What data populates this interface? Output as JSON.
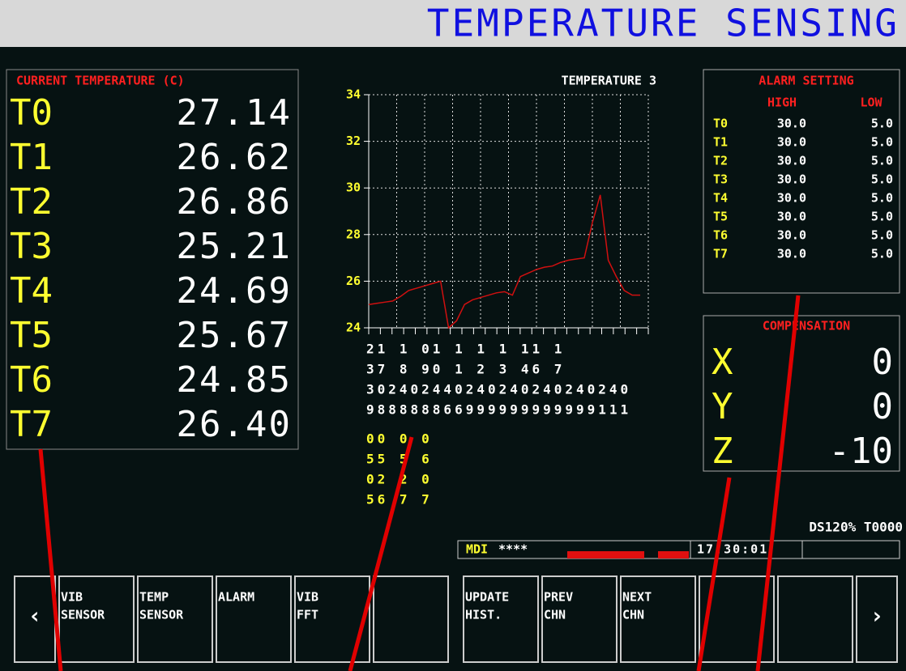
{
  "header": {
    "title": "TEMPERATURE SENSING"
  },
  "current": {
    "title": "CURRENT TEMPERATURE (C)",
    "rows": [
      [
        "T0",
        "27.14"
      ],
      [
        "T1",
        "26.62"
      ],
      [
        "T2",
        "26.86"
      ],
      [
        "T3",
        "25.21"
      ],
      [
        "T4",
        "24.69"
      ],
      [
        "T5",
        "25.67"
      ],
      [
        "T6",
        "24.85"
      ],
      [
        "T7",
        "26.40"
      ]
    ]
  },
  "chart_data": {
    "type": "line",
    "title": "TEMPERATURE 3",
    "color": "#d01010",
    "ylim": [
      24,
      34
    ],
    "yticks": [
      24,
      26,
      28,
      30,
      32,
      34
    ],
    "grid": true,
    "values": [
      25.0,
      25.05,
      25.1,
      25.15,
      25.35,
      25.6,
      25.7,
      25.8,
      25.9,
      26.0,
      24.0,
      24.3,
      25.0,
      25.2,
      25.3,
      25.4,
      25.5,
      25.55,
      25.4,
      26.2,
      26.35,
      26.5,
      26.6,
      26.65,
      26.8,
      26.9,
      26.95,
      27.0,
      28.5,
      29.7,
      26.9,
      26.2,
      25.6,
      25.4,
      25.4
    ],
    "x_label_rows": [
      "21 1 01 1 1 1 11 1",
      "37 8 90 1 2 3 46 7",
      "302402440240240240240240",
      "988888866999999999999111"
    ],
    "x_label_rows_yellow": [
      "00 0 0",
      "55 5 6",
      "02 2 0",
      "56 7 7"
    ]
  },
  "alarm": {
    "title": "ALARM SETTING",
    "headers": [
      "HIGH",
      "LOW"
    ],
    "rows": [
      [
        "T0",
        "30.0",
        "5.0"
      ],
      [
        "T1",
        "30.0",
        "5.0"
      ],
      [
        "T2",
        "30.0",
        "5.0"
      ],
      [
        "T3",
        "30.0",
        "5.0"
      ],
      [
        "T4",
        "30.0",
        "5.0"
      ],
      [
        "T5",
        "30.0",
        "5.0"
      ],
      [
        "T6",
        "30.0",
        "5.0"
      ],
      [
        "T7",
        "30.0",
        "5.0"
      ]
    ]
  },
  "compensation": {
    "title": "COMPENSATION",
    "rows": [
      [
        "X",
        "0"
      ],
      [
        "Y",
        "0"
      ],
      [
        "Z",
        "-10"
      ]
    ]
  },
  "status": {
    "info": "DS120% T0000",
    "mode": "MDI",
    "stars": "****",
    "time": "17:30:01"
  },
  "softkeys": {
    "prev": "‹",
    "next": "›",
    "left": [
      [
        "VIB",
        "SENSOR"
      ],
      [
        "TEMP",
        "SENSOR"
      ],
      [
        "ALARM"
      ],
      [
        "VIB",
        "FFT"
      ]
    ],
    "right": [
      [
        "UPDATE",
        "HIST."
      ],
      [
        "PREV",
        "CHN"
      ],
      [
        "NEXT",
        "CHN"
      ]
    ]
  }
}
